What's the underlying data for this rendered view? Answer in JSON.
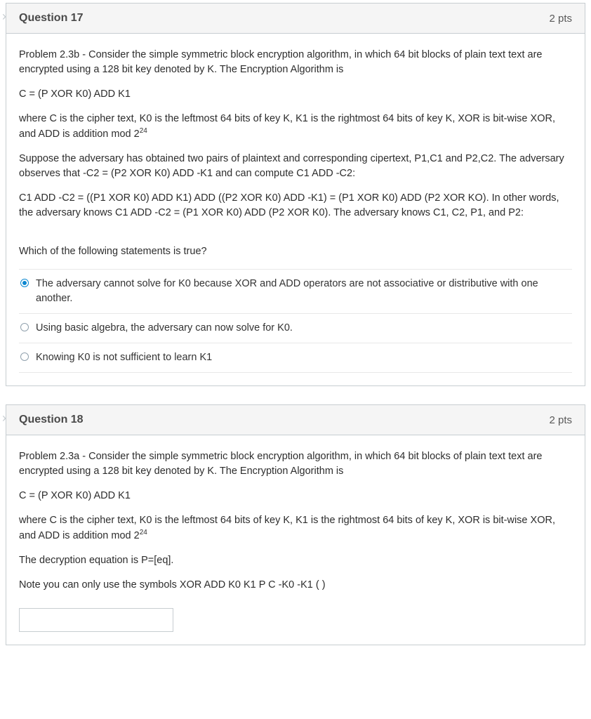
{
  "questions": [
    {
      "number": "Question 17",
      "points": "2 pts",
      "paragraphs": [
        "Problem 2.3b - Consider the simple symmetric block encryption algorithm, in which 64 bit blocks of plain text text are encrypted using a 128 bit key denoted by K.  The Encryption Algorithm is",
        "C = (P XOR K0) ADD K1",
        "where C is the cipher text, K0 is the leftmost 64 bits of key K, K1 is the rightmost 64 bits of key K, XOR is bit-wise XOR, and ADD is addition mod 2",
        "Suppose the adversary has obtained two pairs of plaintext and corresponding cipertext, P1,C1 and P2,C2.  The adversary observes that -C2 = (P2 XOR K0) ADD -K1 and can compute C1 ADD -C2:",
        "C1 ADD -C2 = ((P1 XOR K0) ADD K1) ADD ((P2 XOR K0) ADD -K1) = (P1 XOR K0) ADD (P2 XOR KO).  In other words, the adversary knows C1 ADD -C2 = (P1 XOR K0) ADD (P2 XOR K0).  The adversary knows C1, C2, P1, and P2:",
        "Which of the following statements is true?"
      ],
      "sup_exp": "24",
      "options": [
        {
          "text": "The adversary cannot solve for K0 because XOR and ADD operators are not associative or distributive with one another.",
          "selected": true
        },
        {
          "text": "Using basic algebra, the adversary can now solve for K0.",
          "selected": false
        },
        {
          "text": "Knowing K0 is not sufficient to learn K1",
          "selected": false
        }
      ]
    },
    {
      "number": "Question 18",
      "points": "2 pts",
      "paragraphs": [
        "Problem 2.3a - Consider the simple symmetric block encryption algorithm, in which 64 bit blocks of plain text text are encrypted using a 128 bit key denoted by K.  The Encryption Algorithm is",
        "C = (P XOR K0) ADD K1",
        "where C is the cipher text, K0 is the leftmost 64 bits of key K, K1 is the rightmost 64 bits of key K, XOR is bit-wise XOR, and ADD is addition mod 2",
        "The decryption equation is P=[eq].",
        "Note you can only use the symbols XOR ADD K0 K1 P C -K0 -K1 ( )"
      ],
      "sup_exp": "24",
      "input_value": ""
    }
  ]
}
